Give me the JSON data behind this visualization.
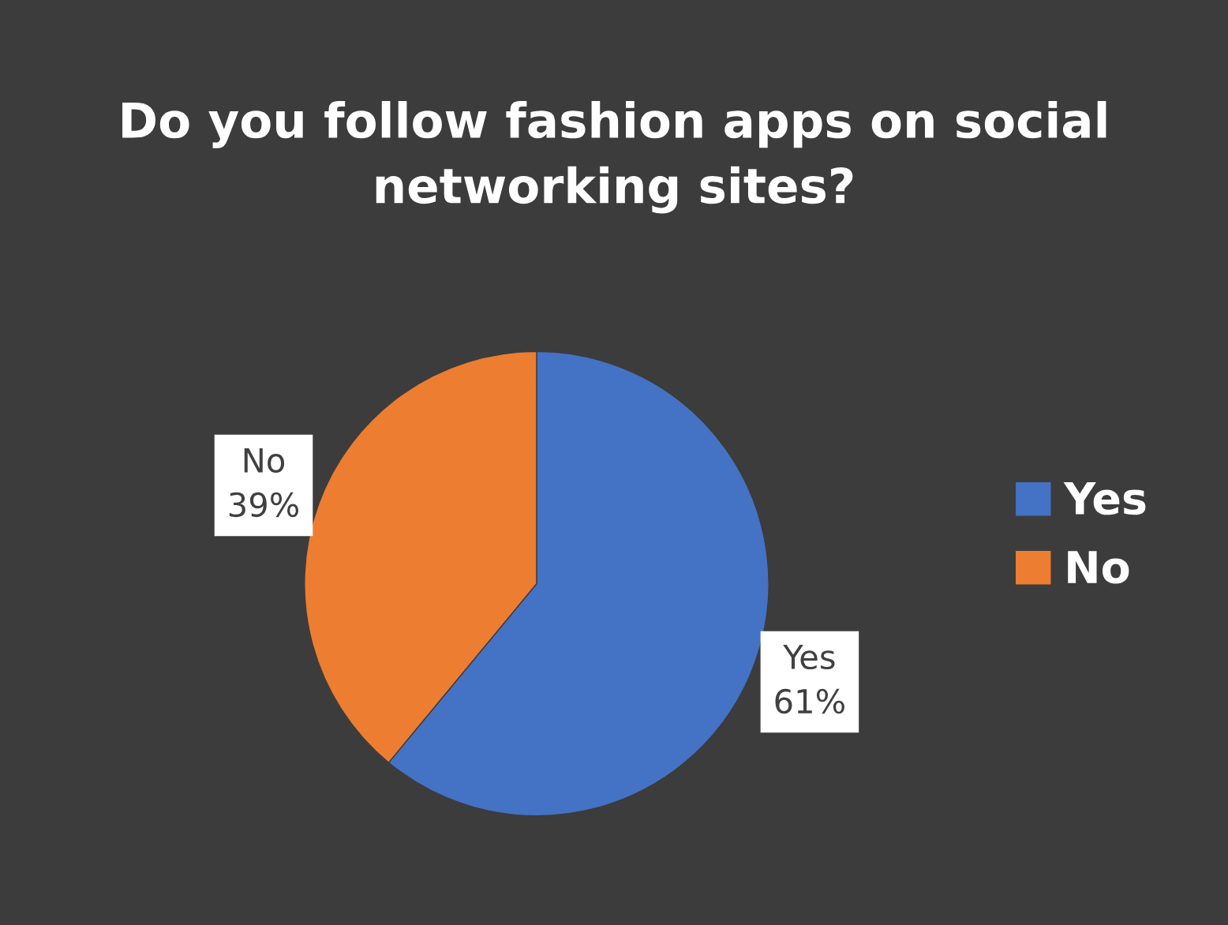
{
  "chart_data": {
    "type": "pie",
    "title": "Do you follow fashion apps on social networking sites?",
    "categories": [
      "Yes",
      "No"
    ],
    "values": [
      61,
      39
    ],
    "colors": [
      "#4472c4",
      "#ed7d31"
    ],
    "value_labels": [
      "Yes\n61%",
      "No\n39%"
    ],
    "legend": "right"
  }
}
